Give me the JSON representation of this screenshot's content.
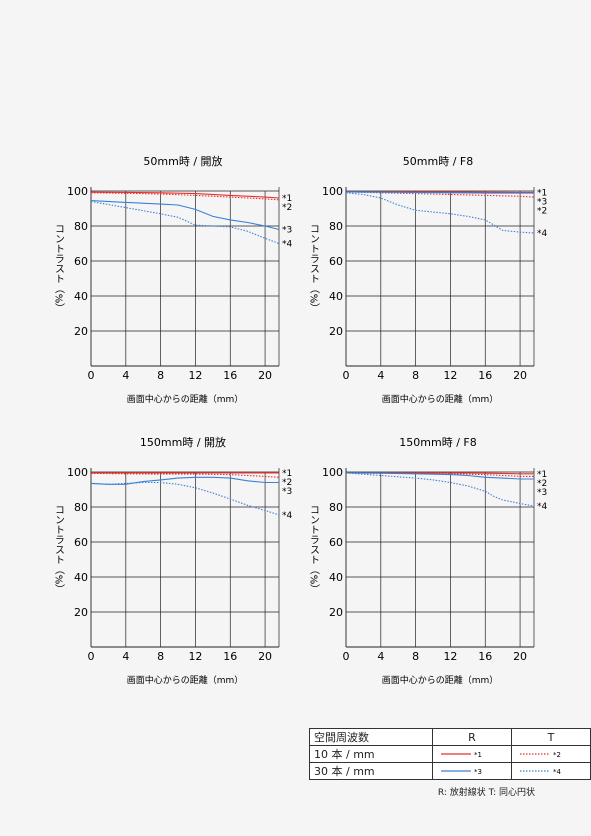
{
  "colors": {
    "red": "#e8302f",
    "blue": "#3a80d8"
  },
  "chart_data": [
    {
      "type": "line",
      "title": "50mm時 / 開放",
      "xlabel": "画面中心からの距離（mm）",
      "ylabel": "コントラスト（%）",
      "xlim": [
        0,
        21.6
      ],
      "ylim": [
        0,
        100
      ],
      "xticks": [
        0,
        4,
        8,
        12,
        16,
        20
      ],
      "yticks": [
        20,
        40,
        60,
        80,
        100
      ],
      "series": [
        {
          "name": "*1",
          "color": "red",
          "dashed": false,
          "x": [
            0,
            4,
            8,
            12,
            16,
            20,
            21.6
          ],
          "y": [
            99.3,
            99.2,
            99,
            98.5,
            97.5,
            96.5,
            96
          ]
        },
        {
          "name": "*2",
          "color": "red",
          "dashed": true,
          "x": [
            0,
            4,
            8,
            12,
            16,
            20,
            21.6
          ],
          "y": [
            99,
            98.7,
            98.3,
            97.5,
            96.5,
            95.5,
            95
          ]
        },
        {
          "name": "*3",
          "color": "blue",
          "dashed": false,
          "x": [
            0,
            4,
            8,
            10,
            12,
            14,
            16,
            18,
            20,
            21.6
          ],
          "y": [
            94.5,
            93.5,
            92.5,
            92,
            89.5,
            85.5,
            83.5,
            82,
            80,
            78
          ]
        },
        {
          "name": "*4",
          "color": "blue",
          "dashed": true,
          "x": [
            0,
            4,
            8,
            10,
            12,
            14,
            16,
            18,
            20,
            21.6
          ],
          "y": [
            94,
            90.5,
            87,
            85,
            80.5,
            80,
            79.5,
            77,
            73,
            70
          ]
        }
      ]
    },
    {
      "type": "line",
      "title": "50mm時 / F8",
      "xlabel": "画面中心からの距離（mm）",
      "ylabel": "コントラスト（%）",
      "xlim": [
        0,
        21.6
      ],
      "ylim": [
        0,
        100
      ],
      "xticks": [
        0,
        4,
        8,
        12,
        16,
        20
      ],
      "yticks": [
        20,
        40,
        60,
        80,
        100
      ],
      "series": [
        {
          "name": "*1",
          "color": "red",
          "dashed": false,
          "x": [
            0,
            4,
            8,
            12,
            16,
            20,
            21.6
          ],
          "y": [
            99.5,
            99.5,
            99.5,
            99.5,
            99.3,
            99.2,
            99.2
          ]
        },
        {
          "name": "*2",
          "color": "red",
          "dashed": true,
          "x": [
            0,
            4,
            8,
            12,
            16,
            20,
            21.6
          ],
          "y": [
            99.5,
            99,
            98.5,
            98,
            97.5,
            97,
            96.5
          ]
        },
        {
          "name": "*3",
          "color": "blue",
          "dashed": false,
          "x": [
            0,
            4,
            8,
            12,
            16,
            20,
            21.6
          ],
          "y": [
            99.5,
            99.3,
            99.2,
            99,
            98.8,
            98.8,
            98.8
          ]
        },
        {
          "name": "*4",
          "color": "blue",
          "dashed": true,
          "x": [
            0,
            2,
            4,
            6,
            8,
            10,
            12,
            14,
            16,
            17,
            18,
            20,
            21.6
          ],
          "y": [
            99,
            98,
            96,
            92,
            89,
            88,
            87,
            85.5,
            83.5,
            80.5,
            77.5,
            76.5,
            76
          ]
        }
      ]
    },
    {
      "type": "line",
      "title": "150mm時 / 開放",
      "xlabel": "画面中心からの距離（mm）",
      "ylabel": "コントラスト（%）",
      "xlim": [
        0,
        21.6
      ],
      "ylim": [
        0,
        100
      ],
      "xticks": [
        0,
        4,
        8,
        12,
        16,
        20
      ],
      "yticks": [
        20,
        40,
        60,
        80,
        100
      ],
      "series": [
        {
          "name": "*1",
          "color": "red",
          "dashed": false,
          "x": [
            0,
            4,
            8,
            12,
            16,
            20,
            21.6
          ],
          "y": [
            99.5,
            99.5,
            99.5,
            99.5,
            99.5,
            99.5,
            99.5
          ]
        },
        {
          "name": "*2",
          "color": "red",
          "dashed": true,
          "x": [
            0,
            4,
            8,
            12,
            16,
            20,
            21.6
          ],
          "y": [
            99.2,
            99,
            98.8,
            98.8,
            98.5,
            97.5,
            97
          ]
        },
        {
          "name": "*3",
          "color": "blue",
          "dashed": false,
          "x": [
            0,
            2,
            4,
            6,
            8,
            10,
            12,
            14,
            16,
            18,
            20,
            21.6
          ],
          "y": [
            93.5,
            93,
            93,
            94.5,
            95.5,
            96.5,
            97,
            97,
            96.5,
            95,
            94,
            94
          ]
        },
        {
          "name": "*4",
          "color": "blue",
          "dashed": true,
          "x": [
            0,
            2,
            4,
            6,
            8,
            10,
            12,
            14,
            16,
            18,
            20,
            21.6
          ],
          "y": [
            93.5,
            93,
            93.5,
            94,
            94,
            93,
            91,
            88,
            84.5,
            81,
            78,
            75.5
          ]
        }
      ]
    },
    {
      "type": "line",
      "title": "150mm時 / F8",
      "xlabel": "画面中心からの距離（mm）",
      "ylabel": "コントラスト（%）",
      "xlim": [
        0,
        21.6
      ],
      "ylim": [
        0,
        100
      ],
      "xticks": [
        0,
        4,
        8,
        12,
        16,
        20
      ],
      "yticks": [
        20,
        40,
        60,
        80,
        100
      ],
      "series": [
        {
          "name": "*1",
          "color": "red",
          "dashed": false,
          "x": [
            0,
            4,
            8,
            12,
            16,
            20,
            21.6
          ],
          "y": [
            99.5,
            99.5,
            99.5,
            99.5,
            99.3,
            99,
            99
          ]
        },
        {
          "name": "*2",
          "color": "red",
          "dashed": true,
          "x": [
            0,
            4,
            8,
            12,
            16,
            20,
            21.6
          ],
          "y": [
            99.5,
            99.3,
            99.2,
            99,
            98.5,
            97.5,
            97.5
          ]
        },
        {
          "name": "*3",
          "color": "blue",
          "dashed": false,
          "x": [
            0,
            4,
            8,
            12,
            14,
            16,
            18,
            20,
            21.6
          ],
          "y": [
            99.5,
            99.3,
            99,
            98.5,
            98,
            97,
            96.5,
            96,
            96
          ]
        },
        {
          "name": "*4",
          "color": "blue",
          "dashed": true,
          "x": [
            0,
            4,
            8,
            10,
            12,
            14,
            16,
            17,
            18,
            20,
            21.6
          ],
          "y": [
            99.5,
            98,
            96.5,
            95.5,
            94,
            92,
            89,
            86,
            84,
            82,
            80.5
          ]
        }
      ]
    }
  ],
  "legend": {
    "header": "空間周波数",
    "r_label": "R",
    "t_label": "T",
    "rows": [
      {
        "label": "10 本 / mm",
        "r_mark": "*1",
        "t_mark": "*2",
        "color": "red"
      },
      {
        "label": "30 本 / mm",
        "r_mark": "*3",
        "t_mark": "*4",
        "color": "blue"
      }
    ],
    "note": "R: 放射線状  T: 同心円状"
  }
}
